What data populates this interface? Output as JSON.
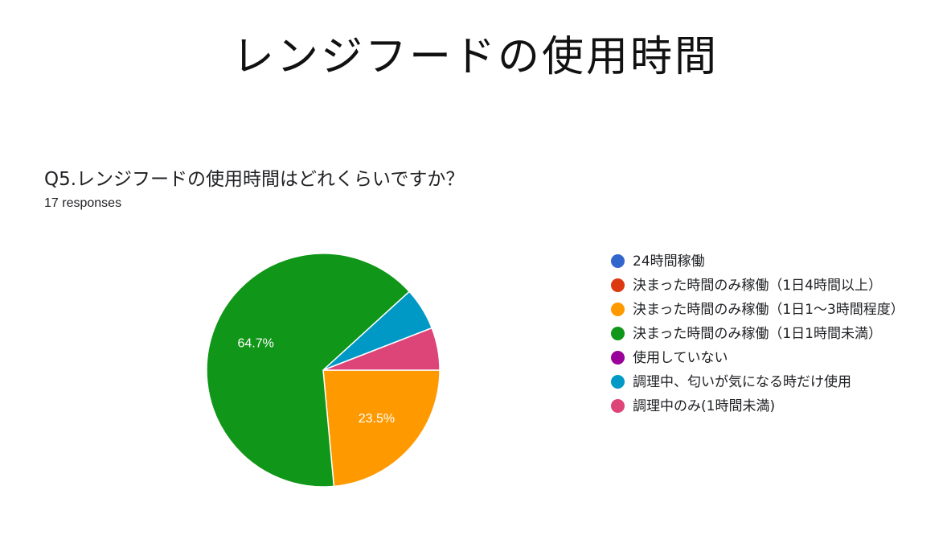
{
  "slide": {
    "title": "レンジフードの使用時間"
  },
  "question": {
    "text": "Q5.レンジフードの使用時間はどれくらいですか？",
    "responses": "17 responses"
  },
  "chart_data": {
    "type": "pie",
    "total_responses": 17,
    "slices": [
      {
        "label": "24時間稼働",
        "value": 0,
        "color": "#3366cc"
      },
      {
        "label": "決まった時間のみ稼働（1日4時間以上）",
        "value": 0,
        "color": "#dc3912"
      },
      {
        "label": "決まった時間のみ稼働（1日1〜3時間程度）",
        "value": 4,
        "percent": 23.5,
        "display_label": "23.5%",
        "color": "#ff9900"
      },
      {
        "label": "決まった時間のみ稼働（1日1時間未満）",
        "value": 11,
        "percent": 64.7,
        "display_label": "64.7%",
        "color": "#109618"
      },
      {
        "label": "使用していない",
        "value": 0,
        "color": "#990099"
      },
      {
        "label": "調理中、匂いが気になる時だけ使用",
        "value": 1,
        "percent": 5.9,
        "color": "#0099c6"
      },
      {
        "label": "調理中のみ(1時間未満)",
        "value": 1,
        "percent": 5.9,
        "color": "#dd4477"
      }
    ],
    "legend_position": "right"
  }
}
